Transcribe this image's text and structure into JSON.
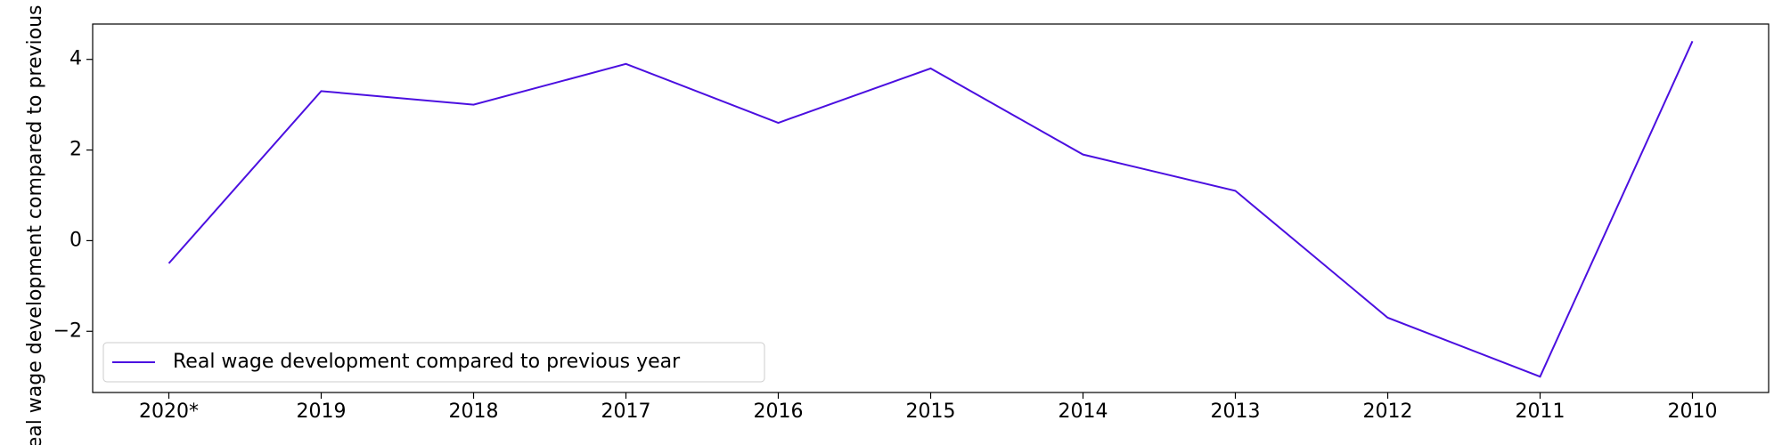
{
  "chart_data": {
    "type": "line",
    "y_label": "Real wage development compared to previous year",
    "categories": [
      "2020*",
      "2019",
      "2018",
      "2017",
      "2016",
      "2015",
      "2014",
      "2013",
      "2012",
      "2011",
      "2010"
    ],
    "series": [
      {
        "name": "Real wage development compared to previous year",
        "color": "#4b0fe0",
        "values": [
          -0.5,
          3.3,
          3.0,
          3.9,
          2.6,
          3.8,
          1.9,
          1.1,
          -1.7,
          -3.0,
          4.4
        ]
      }
    ],
    "ylim": [
      -3.35,
      4.78
    ],
    "yticks": [
      {
        "value": -2,
        "label": "−2"
      },
      0,
      2,
      4
    ],
    "legend": "lower left"
  }
}
